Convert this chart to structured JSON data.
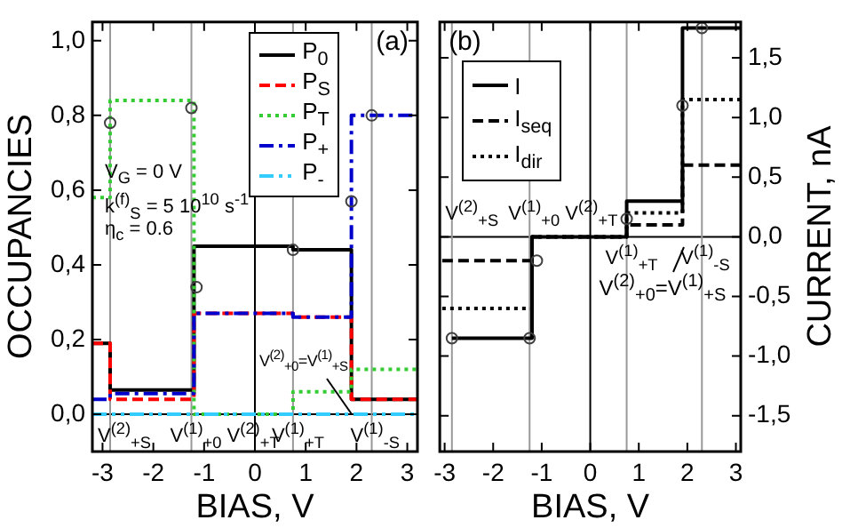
{
  "chart_data": [
    {
      "type": "step",
      "xlabel": "BIAS, V",
      "ylabel": "OCCUPANCIES",
      "xlim": [
        -3.2,
        3.2
      ],
      "xticks": [
        -3,
        -2,
        -1,
        0,
        1,
        2,
        3
      ],
      "ylim": [
        -0.1,
        1.05
      ],
      "yticks": [
        {
          "value": 0,
          "label": "0,0"
        },
        {
          "value": 0.2,
          "label": "0,2"
        },
        {
          "value": 0.4,
          "label": "0,4"
        },
        {
          "value": 0.6,
          "label": "0,6"
        },
        {
          "value": 0.8,
          "label": "0,8"
        },
        {
          "value": 1,
          "label": "1,0"
        }
      ],
      "legend": "top right",
      "series": [
        {
          "name": "P$_{0}$",
          "color": "#000000",
          "line_style": "solid",
          "x": [
            -3.2,
            -2.85,
            -1.2,
            0.75,
            1.9,
            3.2
          ],
          "values": [
            0.19,
            0.065,
            0.45,
            0.44,
            0.04,
            0.04
          ]
        },
        {
          "name": "P$_{S}$",
          "color": "#ff0000",
          "line_style": "dashed",
          "x": [
            -3.2,
            -2.85,
            -1.2,
            0.75,
            1.9,
            3.2
          ],
          "values": [
            0.19,
            0.04,
            0.27,
            0.26,
            0.04,
            0.04
          ]
        },
        {
          "name": "P$_{T}$",
          "color": "#33cc33",
          "line_style": "dotted",
          "x": [
            -3.2,
            -2.85,
            -1.2,
            0.75,
            1.9,
            3.2
          ],
          "values": [
            0.58,
            0.84,
            0,
            0.06,
            0.12,
            0.12
          ]
        },
        {
          "name": "P$_{+}$",
          "color": "#0000cc",
          "line_style": "dashdot",
          "x": [
            -3.2,
            -2.85,
            -1.2,
            0.75,
            1.9,
            3.2
          ],
          "values": [
            0.04,
            0.055,
            0.27,
            0.26,
            0.8,
            0.8
          ]
        },
        {
          "name": "P$_{-}$",
          "color": "#33ccff",
          "line_style": "dashdotdot",
          "x": [
            -3.2,
            3.2
          ],
          "values": [
            0,
            0
          ]
        },
        {
          "type": "scatter",
          "color": "#404040",
          "marker": "circle",
          "x": [
            -2.85,
            -1.25,
            -1.15,
            0.75,
            1.9,
            2.3
          ],
          "values": [
            0.78,
            0.82,
            0.34,
            0.44,
            0.57,
            0.8
          ]
        }
      ],
      "ref_lines": [
        {
          "axis": "x",
          "value": 0,
          "color": "#000000"
        },
        {
          "axis": "y",
          "value": 0,
          "color": "#000000"
        },
        {
          "axis": "x",
          "value": -2.85,
          "color": "#999999",
          "label": "V$^{(2)}$$_{+S}$"
        },
        {
          "axis": "x",
          "value": -1.25,
          "color": "#999999",
          "label": "V$^{(1)}$$_{+0}$ V$^{(2)}$$_{+T}$"
        },
        {
          "axis": "x",
          "value": 0.75,
          "color": "#999999",
          "label": "V$^{(1)}$$_{+T}$"
        },
        {
          "axis": "x",
          "value": 2.3,
          "color": "#999999",
          "label": "V$^{(1)}$$_{-S}$"
        }
      ],
      "annotations": [
        "(a)",
        "V$_{G}$ = 0 V",
        "k$^{(f)}$$_{S}$ = 5 10$^{10}$ s$^{-1}$",
        "η$_{c}$ = 0.6",
        {
          "text": "V$^{(2)}$$_{+0}$=V$^{(1)}$$_{+S}$",
          "x": 1.9,
          "y": 0
        }
      ]
    },
    {
      "type": "step",
      "xlabel": "BIAS, V",
      "y2label": "CURRENT, nA",
      "xlim": [
        -3.1,
        3.1
      ],
      "xticks": [
        -3,
        -2,
        -1,
        0,
        1,
        2,
        3
      ],
      "y2lim": [
        -1.8,
        1.8
      ],
      "y2ticks": [
        {
          "value": -1.5,
          "label": "-1,5"
        },
        {
          "value": -1,
          "label": "-1,0"
        },
        {
          "value": -0.5,
          "label": "-0,5"
        },
        {
          "value": 0,
          "label": "0,0"
        },
        {
          "value": 0.5,
          "label": "0,5"
        },
        {
          "value": 1,
          "label": "1,0"
        },
        {
          "value": 1.5,
          "label": "1,5"
        }
      ],
      "legend": "top left",
      "series": [
        {
          "name": "I",
          "axis": "y2",
          "color": "#000000",
          "line_style": "solid",
          "x": [
            -2.85,
            -1.2,
            0.75,
            1.9,
            3.1
          ],
          "values": [
            -0.85,
            0,
            0.3,
            1.75,
            1.75
          ]
        },
        {
          "name": "I$_{seq}$",
          "axis": "y2",
          "color": "#000000",
          "line_style": "dashed",
          "x": [
            -3.05,
            -1.2,
            0.75,
            1.9,
            3.1
          ],
          "values": [
            -0.2,
            0,
            0.1,
            0.6,
            0.6
          ]
        },
        {
          "name": "I$_{dir}$",
          "axis": "y2",
          "color": "#000000",
          "line_style": "dotted",
          "x": [
            -3.05,
            -1.2,
            0.75,
            1.9,
            3.1
          ],
          "values": [
            -0.6,
            0,
            0.2,
            1.15,
            1.15
          ]
        },
        {
          "type": "scatter",
          "axis": "y2",
          "color": "#404040",
          "marker": "circle",
          "x": [
            -2.85,
            -1.25,
            -1.1,
            0.75,
            1.9,
            2.3
          ],
          "values": [
            -0.85,
            -0.85,
            -0.2,
            0.15,
            1.1,
            1.75
          ]
        }
      ],
      "ref_lines": [
        {
          "axis": "x",
          "value": 0,
          "color": "#000000"
        },
        {
          "axis": "y2",
          "value": 0,
          "color": "#000000"
        },
        {
          "axis": "x",
          "value": -2.85,
          "color": "#999999",
          "label": "V$^{(2)}$$_{+S}$"
        },
        {
          "axis": "x",
          "value": -1.25,
          "color": "#999999",
          "label": "V$^{(1)}$$_{+0}$ V$^{(2)}$$_{+T}$"
        },
        {
          "axis": "x",
          "value": 0.75,
          "color": "#999999",
          "label": "V$^{(1)}$$_{+T}$"
        },
        {
          "axis": "x",
          "value": 2.3,
          "color": "#999999",
          "label": "V$^{(1)}$$_{-S}$"
        }
      ],
      "annotations": [
        "(b)",
        "V$^{(2)}$$_{+0}$=V$^{(1)}$$_{+S}$"
      ]
    }
  ]
}
